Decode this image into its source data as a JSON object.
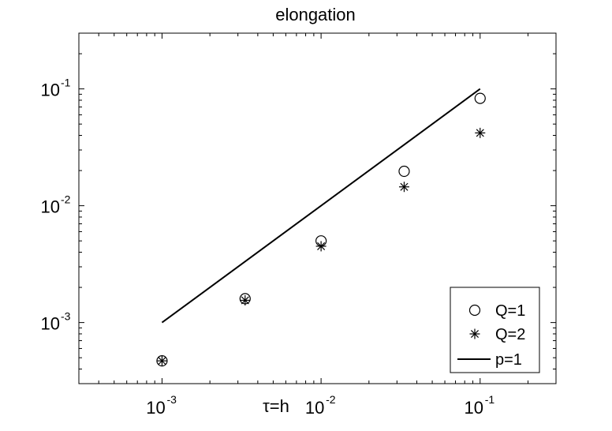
{
  "chart_data": {
    "type": "scatter",
    "title": "elongation",
    "xlabel": "τ=h",
    "ylabel": "",
    "x_scale": "log",
    "y_scale": "log",
    "xlim": [
      0.0003,
      0.3
    ],
    "ylim": [
      0.0003,
      0.3
    ],
    "grid": false,
    "legend_position": "bottom-right",
    "x_ticks": [
      {
        "base": "10",
        "exp": "-3",
        "value": 0.001
      },
      {
        "base": "10",
        "exp": "-2",
        "value": 0.01
      },
      {
        "base": "10",
        "exp": "-1",
        "value": 0.1
      }
    ],
    "y_ticks": [
      {
        "base": "10",
        "exp": "-3",
        "value": 0.001
      },
      {
        "base": "10",
        "exp": "-2",
        "value": 0.01
      },
      {
        "base": "10",
        "exp": "-1",
        "value": 0.1
      }
    ],
    "series": [
      {
        "name": "Q=1",
        "marker": "circle",
        "x": [
          0.001,
          0.00333,
          0.01,
          0.0333,
          0.1
        ],
        "y": [
          0.00047,
          0.0016,
          0.005,
          0.0197,
          0.083
        ]
      },
      {
        "name": "Q=2",
        "marker": "star",
        "x": [
          0.001,
          0.00333,
          0.01,
          0.0333,
          0.1
        ],
        "y": [
          0.00047,
          0.00155,
          0.0045,
          0.0145,
          0.042
        ]
      },
      {
        "name": "p=1",
        "marker": "line",
        "x": [
          0.001,
          0.1
        ],
        "y": [
          0.001,
          0.1
        ]
      }
    ]
  }
}
